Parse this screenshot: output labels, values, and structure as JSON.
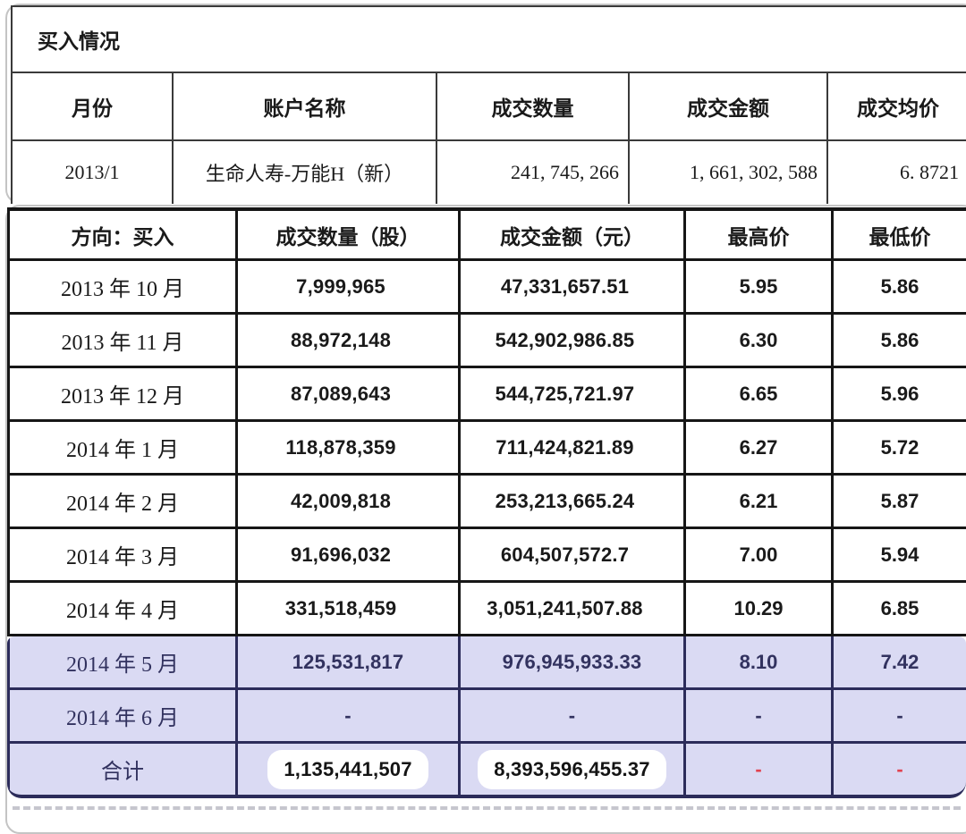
{
  "buy_summary": {
    "title": "买入情况",
    "headers": [
      "月份",
      "账户名称",
      "成交数量",
      "成交金额",
      "成交均价"
    ],
    "row": [
      "2013/1",
      "生命人寿-万能H（新）",
      "241, 745, 266",
      "1, 661, 302, 588",
      "6. 8721"
    ]
  },
  "monthly_table": {
    "headers": [
      "方向：买入",
      "成交数量（股）",
      "成交金额（元）",
      "最高价",
      "最低价"
    ],
    "rows": [
      [
        "2013 年 10 月",
        "7,999,965",
        "47,331,657.51",
        "5.95",
        "5.86"
      ],
      [
        "2013 年 11 月",
        "88,972,148",
        "542,902,986.85",
        "6.30",
        "5.86"
      ],
      [
        "2013 年 12 月",
        "87,089,643",
        "544,725,721.97",
        "6.65",
        "5.96"
      ],
      [
        "2014 年 1 月",
        "118,878,359",
        "711,424,821.89",
        "6.27",
        "5.72"
      ],
      [
        "2014 年 2 月",
        "42,009,818",
        "253,213,665.24",
        "6.21",
        "5.87"
      ],
      [
        "2014 年 3 月",
        "91,696,032",
        "604,507,572.7",
        "7.00",
        "5.94"
      ],
      [
        "2014 年 4 月",
        "331,518,459",
        "3,051,241,507.88",
        "10.29",
        "6.85"
      ]
    ],
    "highlight_rows": [
      [
        "2014 年 5 月",
        "125,531,817",
        "976,945,933.33",
        "8.10",
        "7.42"
      ],
      [
        "2014 年 6 月",
        "-",
        "-",
        "-",
        "-"
      ],
      [
        "合计",
        "1,135,441,507",
        "8,393,596,455.37",
        "-",
        "-"
      ]
    ],
    "colors": {
      "highlight_background": "#dadaf3",
      "highlight_text": "#32325f",
      "highlight_border": "#2c2c5a",
      "negative_dash_red": "#e2414e",
      "table_border": "#161616"
    }
  }
}
